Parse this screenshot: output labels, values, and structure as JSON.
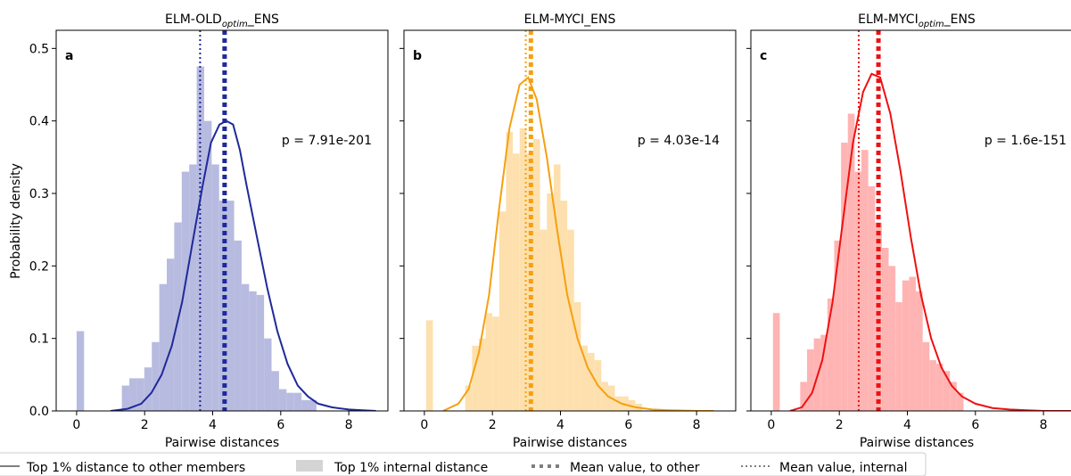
{
  "figure": {
    "y_axis_label": "Probability density",
    "legend": [
      {
        "key": "solid",
        "label": "Top 1% distance to other members"
      },
      {
        "key": "bar",
        "label": "Top 1% internal distance"
      },
      {
        "key": "thickdot",
        "label": "Mean value, to other"
      },
      {
        "key": "thindot",
        "label": "Mean value, internal"
      }
    ]
  },
  "chart_data": [
    {
      "type": "bar",
      "panel_letter": "a",
      "title_main": "ELM-OLD",
      "title_sub": "optim",
      "title_suffix": "_ENS",
      "xlabel": "Pairwise distances",
      "ylabel": "Probability density",
      "xlim": [
        -0.6,
        9.15
      ],
      "ylim": [
        0,
        0.525
      ],
      "xticks": [
        0,
        2,
        4,
        6,
        8
      ],
      "yticks": [
        0.0,
        0.1,
        0.2,
        0.3,
        0.4,
        0.5
      ],
      "show_ytick_labels": true,
      "annotation": "p = 7.91e-201",
      "colors": {
        "hist": "#b8bbe0",
        "line": "#1f2a99"
      },
      "hist": {
        "bin_width": 0.22,
        "bins": [
          {
            "x": 0.0,
            "y": 0.11
          },
          {
            "x": 1.33,
            "y": 0.035
          },
          {
            "x": 1.55,
            "y": 0.045
          },
          {
            "x": 1.77,
            "y": 0.045
          },
          {
            "x": 1.99,
            "y": 0.06
          },
          {
            "x": 2.21,
            "y": 0.095
          },
          {
            "x": 2.43,
            "y": 0.175
          },
          {
            "x": 2.65,
            "y": 0.21
          },
          {
            "x": 2.87,
            "y": 0.26
          },
          {
            "x": 3.09,
            "y": 0.33
          },
          {
            "x": 3.31,
            "y": 0.34
          },
          {
            "x": 3.53,
            "y": 0.475
          },
          {
            "x": 3.75,
            "y": 0.4
          },
          {
            "x": 3.97,
            "y": 0.34
          },
          {
            "x": 4.19,
            "y": 0.29
          },
          {
            "x": 4.41,
            "y": 0.29
          },
          {
            "x": 4.63,
            "y": 0.235
          },
          {
            "x": 4.85,
            "y": 0.175
          },
          {
            "x": 5.07,
            "y": 0.165
          },
          {
            "x": 5.29,
            "y": 0.16
          },
          {
            "x": 5.51,
            "y": 0.1
          },
          {
            "x": 5.73,
            "y": 0.055
          },
          {
            "x": 5.95,
            "y": 0.03
          },
          {
            "x": 6.17,
            "y": 0.025
          },
          {
            "x": 6.39,
            "y": 0.025
          },
          {
            "x": 6.61,
            "y": 0.015
          },
          {
            "x": 6.83,
            "y": 0.015
          }
        ]
      },
      "curve": {
        "x": [
          1.0,
          1.5,
          1.9,
          2.2,
          2.5,
          2.8,
          3.1,
          3.4,
          3.7,
          3.95,
          4.2,
          4.4,
          4.6,
          4.8,
          5.0,
          5.3,
          5.6,
          5.9,
          6.2,
          6.5,
          6.8,
          7.1,
          7.5,
          8.0,
          8.4,
          8.8
        ],
        "y": [
          0.0,
          0.003,
          0.01,
          0.025,
          0.05,
          0.09,
          0.15,
          0.23,
          0.31,
          0.37,
          0.395,
          0.4,
          0.395,
          0.36,
          0.31,
          0.24,
          0.17,
          0.11,
          0.065,
          0.035,
          0.02,
          0.01,
          0.005,
          0.002,
          0.001,
          0.0
        ]
      },
      "mean_other": 4.35,
      "mean_internal": 3.63
    },
    {
      "type": "bar",
      "panel_letter": "b",
      "title_main": "ELM-MYCI_ENS",
      "title_sub": "",
      "title_suffix": "",
      "xlabel": "Pairwise distances",
      "xlim": [
        -0.6,
        9.15
      ],
      "ylim": [
        0,
        0.525
      ],
      "xticks": [
        0,
        2,
        4,
        6,
        8
      ],
      "yticks": [
        0.0,
        0.1,
        0.2,
        0.3,
        0.4,
        0.5
      ],
      "show_ytick_labels": false,
      "annotation": "p = 4.03e-14",
      "colors": {
        "hist": "#fde0ad",
        "line": "#f5a010"
      },
      "hist": {
        "bin_width": 0.2,
        "bins": [
          {
            "x": 0.05,
            "y": 0.125
          },
          {
            "x": 1.2,
            "y": 0.035
          },
          {
            "x": 1.4,
            "y": 0.09
          },
          {
            "x": 1.6,
            "y": 0.1
          },
          {
            "x": 1.8,
            "y": 0.135
          },
          {
            "x": 2.0,
            "y": 0.13
          },
          {
            "x": 2.2,
            "y": 0.275
          },
          {
            "x": 2.4,
            "y": 0.385
          },
          {
            "x": 2.6,
            "y": 0.355
          },
          {
            "x": 2.8,
            "y": 0.39
          },
          {
            "x": 3.0,
            "y": 0.355
          },
          {
            "x": 3.2,
            "y": 0.375
          },
          {
            "x": 3.4,
            "y": 0.25
          },
          {
            "x": 3.6,
            "y": 0.3
          },
          {
            "x": 3.8,
            "y": 0.34
          },
          {
            "x": 4.0,
            "y": 0.29
          },
          {
            "x": 4.2,
            "y": 0.25
          },
          {
            "x": 4.4,
            "y": 0.15
          },
          {
            "x": 4.6,
            "y": 0.09
          },
          {
            "x": 4.8,
            "y": 0.08
          },
          {
            "x": 5.0,
            "y": 0.07
          },
          {
            "x": 5.2,
            "y": 0.04
          },
          {
            "x": 5.4,
            "y": 0.035
          },
          {
            "x": 5.6,
            "y": 0.02
          },
          {
            "x": 5.8,
            "y": 0.02
          },
          {
            "x": 6.0,
            "y": 0.015
          },
          {
            "x": 6.2,
            "y": 0.01
          }
        ]
      },
      "curve": {
        "x": [
          0.55,
          1.0,
          1.3,
          1.6,
          1.9,
          2.2,
          2.5,
          2.8,
          3.05,
          3.3,
          3.6,
          3.9,
          4.2,
          4.5,
          4.8,
          5.1,
          5.4,
          5.8,
          6.2,
          6.7,
          7.2,
          8.0,
          8.5
        ],
        "y": [
          0.0,
          0.01,
          0.03,
          0.08,
          0.16,
          0.28,
          0.39,
          0.45,
          0.46,
          0.43,
          0.35,
          0.25,
          0.16,
          0.1,
          0.06,
          0.035,
          0.02,
          0.01,
          0.005,
          0.002,
          0.001,
          0.0,
          0.0
        ]
      },
      "mean_other": 3.13,
      "mean_internal": 2.98
    },
    {
      "type": "bar",
      "panel_letter": "c",
      "title_main": "ELM-MYCI",
      "title_sub": "optim",
      "title_suffix": "_ENS",
      "xlabel": "Pairwise distances",
      "xlim": [
        -0.6,
        9.15
      ],
      "ylim": [
        0,
        0.525
      ],
      "xticks": [
        0,
        2,
        4,
        6,
        8
      ],
      "yticks": [
        0.0,
        0.1,
        0.2,
        0.3,
        0.4,
        0.5
      ],
      "show_ytick_labels": false,
      "annotation": "p = 1.6e-151",
      "colors": {
        "hist": "#ffb4b4",
        "line": "#ee1111"
      },
      "hist": {
        "bin_width": 0.2,
        "bins": [
          {
            "x": 0.05,
            "y": 0.135
          },
          {
            "x": 0.85,
            "y": 0.04
          },
          {
            "x": 1.05,
            "y": 0.085
          },
          {
            "x": 1.25,
            "y": 0.1
          },
          {
            "x": 1.45,
            "y": 0.105
          },
          {
            "x": 1.65,
            "y": 0.155
          },
          {
            "x": 1.85,
            "y": 0.235
          },
          {
            "x": 2.05,
            "y": 0.37
          },
          {
            "x": 2.25,
            "y": 0.41
          },
          {
            "x": 2.45,
            "y": 0.33
          },
          {
            "x": 2.65,
            "y": 0.36
          },
          {
            "x": 2.85,
            "y": 0.31
          },
          {
            "x": 3.05,
            "y": 0.26
          },
          {
            "x": 3.25,
            "y": 0.225
          },
          {
            "x": 3.45,
            "y": 0.2
          },
          {
            "x": 3.65,
            "y": 0.15
          },
          {
            "x": 3.85,
            "y": 0.18
          },
          {
            "x": 4.05,
            "y": 0.185
          },
          {
            "x": 4.25,
            "y": 0.165
          },
          {
            "x": 4.45,
            "y": 0.095
          },
          {
            "x": 4.65,
            "y": 0.07
          },
          {
            "x": 4.85,
            "y": 0.065
          },
          {
            "x": 5.05,
            "y": 0.055
          },
          {
            "x": 5.25,
            "y": 0.04
          },
          {
            "x": 5.45,
            "y": 0.025
          }
        ]
      },
      "curve": {
        "x": [
          0.55,
          0.9,
          1.2,
          1.5,
          1.8,
          2.1,
          2.4,
          2.7,
          2.95,
          3.2,
          3.5,
          3.8,
          4.1,
          4.4,
          4.7,
          5.0,
          5.3,
          5.6,
          6.0,
          6.5,
          7.0,
          7.5,
          8.0,
          8.5,
          9.0
        ],
        "y": [
          0.0,
          0.005,
          0.025,
          0.07,
          0.15,
          0.26,
          0.37,
          0.44,
          0.465,
          0.46,
          0.41,
          0.33,
          0.24,
          0.16,
          0.1,
          0.06,
          0.035,
          0.02,
          0.01,
          0.004,
          0.002,
          0.001,
          0.0,
          0.0,
          0.0
        ]
      },
      "mean_other": 3.15,
      "mean_internal": 2.57
    }
  ]
}
